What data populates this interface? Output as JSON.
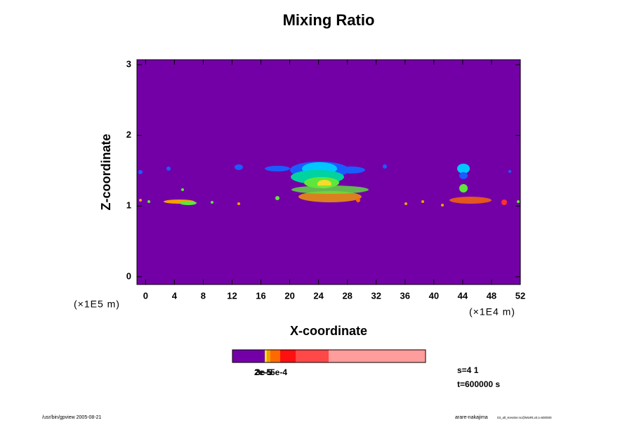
{
  "chart_data": {
    "type": "contour",
    "title": "Mixing Ratio",
    "xlabel": "X-coordinate",
    "ylabel": "Z-coordinate",
    "xunit": "(×1E4 m)",
    "yunit": "(×1E5 m)",
    "xlim": [
      -1.2,
      52
    ],
    "xticks": [
      0,
      4,
      8,
      12,
      16,
      20,
      24,
      28,
      32,
      36,
      40,
      44,
      48,
      52
    ],
    "ylim": [
      -0.11,
      3.07
    ],
    "yticks": [
      0,
      1,
      2,
      3
    ],
    "background": "#7300a6",
    "colorbar_labels": [
      "2e-5",
      "3e-5",
      "5e-4"
    ],
    "annotations": [
      "s=4 1",
      "t=600000 s"
    ],
    "footer_left": "/usr/bin/gpview 2005-08-21",
    "footer_right": "arare-nakajima",
    "footer_right_small": "03_all_Kessler.nc@MixRt,x0,t=600000"
  }
}
